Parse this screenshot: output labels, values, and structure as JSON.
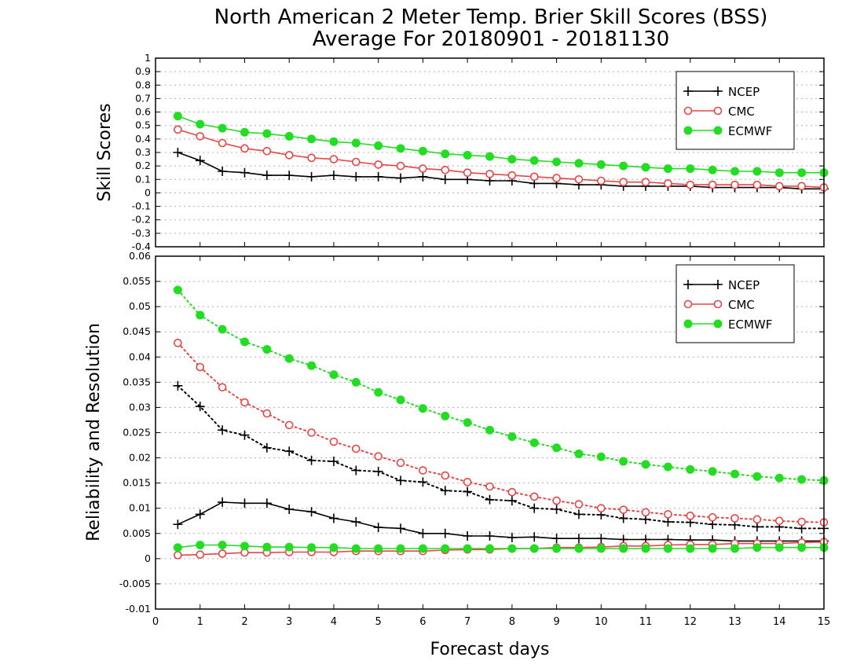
{
  "title": "North American 2 Meter Temp. Brier Skill Scores (BSS)",
  "subtitle": "Average For 20180901 - 20181130",
  "colors": {
    "NCEP": "#000000",
    "CMC": "#e84545",
    "ECMWF": "#22dd22"
  },
  "chart_data": [
    {
      "type": "line",
      "ylabel": "Skill Scores",
      "xlim": [
        0,
        15
      ],
      "ylim": [
        -0.4,
        1
      ],
      "yticks": [
        -0.4,
        -0.3,
        -0.2,
        -0.1,
        0,
        0.1,
        0.2,
        0.3,
        0.4,
        0.5,
        0.6,
        0.7,
        0.8,
        0.9,
        1
      ],
      "ytick_labels": [
        "-0.4",
        "-0.3",
        "-0.2",
        "-0.1",
        "0",
        "0.1",
        "0.2",
        "0.3",
        "0.4",
        "0.5",
        "0.6",
        "0.7",
        "0.8",
        "0.9",
        "1"
      ],
      "grid": true,
      "legend": [
        "NCEP",
        "CMC",
        "ECMWF"
      ],
      "legend_position": "top-right",
      "x": [
        0.5,
        1,
        1.5,
        2,
        2.5,
        3,
        3.5,
        4,
        4.5,
        5,
        5.5,
        6,
        6.5,
        7,
        7.5,
        8,
        8.5,
        9,
        9.5,
        10,
        10.5,
        11,
        11.5,
        12,
        12.5,
        13,
        13.5,
        14,
        14.5,
        15
      ],
      "series": [
        {
          "name": "NCEP",
          "marker": "plus",
          "dash": "solid",
          "values": [
            0.3,
            0.24,
            0.16,
            0.15,
            0.13,
            0.13,
            0.12,
            0.13,
            0.12,
            0.12,
            0.11,
            0.12,
            0.1,
            0.1,
            0.09,
            0.09,
            0.07,
            0.07,
            0.06,
            0.06,
            0.05,
            0.05,
            0.05,
            0.05,
            0.04,
            0.04,
            0.04,
            0.04,
            0.03,
            0.03
          ]
        },
        {
          "name": "CMC",
          "marker": "open-circle",
          "dash": "solid",
          "values": [
            0.47,
            0.42,
            0.37,
            0.33,
            0.31,
            0.28,
            0.26,
            0.25,
            0.23,
            0.21,
            0.2,
            0.18,
            0.17,
            0.15,
            0.14,
            0.13,
            0.12,
            0.11,
            0.1,
            0.09,
            0.08,
            0.08,
            0.07,
            0.06,
            0.06,
            0.06,
            0.06,
            0.05,
            0.05,
            0.04
          ]
        },
        {
          "name": "ECMWF",
          "marker": "filled-circle",
          "dash": "solid",
          "values": [
            0.57,
            0.51,
            0.48,
            0.45,
            0.44,
            0.42,
            0.4,
            0.38,
            0.37,
            0.35,
            0.33,
            0.31,
            0.29,
            0.28,
            0.27,
            0.25,
            0.24,
            0.23,
            0.22,
            0.21,
            0.2,
            0.19,
            0.18,
            0.18,
            0.17,
            0.16,
            0.16,
            0.15,
            0.15,
            0.15
          ]
        }
      ]
    },
    {
      "type": "line",
      "ylabel": "Reliability and Resolution",
      "xlabel": "Forecast days",
      "xlim": [
        0,
        15
      ],
      "xticks": [
        0,
        1,
        2,
        3,
        4,
        5,
        6,
        7,
        8,
        9,
        10,
        11,
        12,
        13,
        14,
        15
      ],
      "xtick_labels": [
        "0",
        "1",
        "2",
        "3",
        "4",
        "5",
        "6",
        "7",
        "8",
        "9",
        "10",
        "11",
        "12",
        "13",
        "14",
        "15"
      ],
      "ylim": [
        -0.01,
        0.06
      ],
      "yticks": [
        -0.01,
        -0.005,
        0,
        0.005,
        0.01,
        0.015,
        0.02,
        0.025,
        0.03,
        0.035,
        0.04,
        0.045,
        0.05,
        0.055,
        0.06
      ],
      "ytick_labels": [
        "-0.01",
        "-0.005",
        "0",
        "0.005",
        "0.01",
        "0.015",
        "0.02",
        "0.025",
        "0.03",
        "0.035",
        "0.04",
        "0.045",
        "0.05",
        "0.055",
        "0.06"
      ],
      "grid": true,
      "legend": [
        "NCEP",
        "CMC",
        "ECMWF"
      ],
      "legend_position": "top-right",
      "x": [
        0.5,
        1,
        1.5,
        2,
        2.5,
        3,
        3.5,
        4,
        4.5,
        5,
        5.5,
        6,
        6.5,
        7,
        7.5,
        8,
        8.5,
        9,
        9.5,
        10,
        10.5,
        11,
        11.5,
        12,
        12.5,
        13,
        13.5,
        14,
        14.5,
        15
      ],
      "series": [
        {
          "name": "NCEP",
          "marker": "plus",
          "dash": "dotted",
          "values": [
            0.0343,
            0.0302,
            0.0255,
            0.0245,
            0.022,
            0.0213,
            0.0195,
            0.0193,
            0.0175,
            0.0173,
            0.0155,
            0.0152,
            0.0135,
            0.0133,
            0.0117,
            0.0115,
            0.01,
            0.0098,
            0.0088,
            0.0087,
            0.008,
            0.0078,
            0.0073,
            0.0072,
            0.0068,
            0.0067,
            0.0063,
            0.0063,
            0.006,
            0.006
          ]
        },
        {
          "name": "CMC",
          "marker": "open-circle",
          "dash": "dotted",
          "values": [
            0.0428,
            0.038,
            0.034,
            0.031,
            0.0288,
            0.0265,
            0.025,
            0.0232,
            0.0218,
            0.0203,
            0.019,
            0.0175,
            0.0165,
            0.0152,
            0.0143,
            0.0132,
            0.0123,
            0.0115,
            0.0108,
            0.01,
            0.0097,
            0.0092,
            0.0088,
            0.0085,
            0.0082,
            0.008,
            0.0078,
            0.0075,
            0.0073,
            0.0072
          ]
        },
        {
          "name": "ECMWF",
          "marker": "filled-circle",
          "dash": "dotted",
          "values": [
            0.0533,
            0.0483,
            0.0455,
            0.043,
            0.0415,
            0.0397,
            0.0383,
            0.0365,
            0.035,
            0.033,
            0.0315,
            0.0298,
            0.0283,
            0.027,
            0.0255,
            0.0242,
            0.023,
            0.022,
            0.0208,
            0.0202,
            0.0193,
            0.0187,
            0.0182,
            0.0177,
            0.0173,
            0.0168,
            0.0163,
            0.016,
            0.0157,
            0.0155
          ]
        },
        {
          "name": "NCEP",
          "marker": "plus",
          "dash": "solid",
          "values": [
            0.0068,
            0.0088,
            0.0112,
            0.011,
            0.011,
            0.0098,
            0.0093,
            0.008,
            0.0073,
            0.0062,
            0.006,
            0.005,
            0.005,
            0.0045,
            0.0045,
            0.0042,
            0.0043,
            0.004,
            0.004,
            0.004,
            0.0038,
            0.0038,
            0.0038,
            0.0037,
            0.0037,
            0.0035,
            0.0035,
            0.0035,
            0.0035,
            0.0035
          ]
        },
        {
          "name": "CMC",
          "marker": "open-circle",
          "dash": "solid",
          "values": [
            0.0007,
            0.0008,
            0.001,
            0.0012,
            0.0012,
            0.0013,
            0.0013,
            0.0013,
            0.0015,
            0.0015,
            0.0015,
            0.0015,
            0.0017,
            0.0018,
            0.0018,
            0.002,
            0.002,
            0.0022,
            0.0022,
            0.0023,
            0.0025,
            0.0025,
            0.0027,
            0.0028,
            0.0028,
            0.003,
            0.003,
            0.003,
            0.0032,
            0.0033
          ]
        },
        {
          "name": "ECMWF",
          "marker": "filled-circle",
          "dash": "solid",
          "values": [
            0.0022,
            0.0027,
            0.0027,
            0.0025,
            0.0023,
            0.0023,
            0.0022,
            0.0022,
            0.002,
            0.002,
            0.002,
            0.002,
            0.002,
            0.002,
            0.002,
            0.002,
            0.002,
            0.002,
            0.002,
            0.002,
            0.002,
            0.002,
            0.002,
            0.002,
            0.002,
            0.002,
            0.0022,
            0.0022,
            0.0022,
            0.0022
          ]
        }
      ]
    }
  ]
}
